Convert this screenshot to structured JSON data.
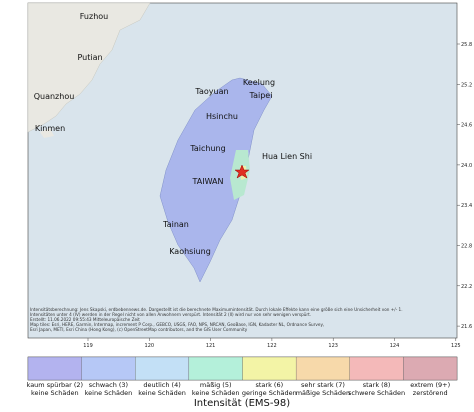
{
  "map": {
    "lat_ticks": [
      "25.8",
      "25.2",
      "24.6",
      "24.0",
      "23.4",
      "22.8",
      "22.2",
      "21.6"
    ],
    "lon_ticks": [
      "119",
      "120",
      "121",
      "122",
      "123",
      "124",
      "125"
    ],
    "places": [
      "Fuzhou",
      "Putian",
      "Quanzhou",
      "Kinmen",
      "Keelung",
      "Taoyuan",
      "Taipei",
      "Hsinchu",
      "Taichung",
      "Hua Lien Shi",
      "TAIWAN",
      "Tainan",
      "Kaohsiung"
    ],
    "attribution": [
      "Intensitätsberechnung: Jens Skapski, erdbebennews.de. Dargestellt ist die berechnete Maximumintensität. Durch lokale Effekte kann eine größe sich eine Unsicherheit von +/- 1.",
      "Intensitäten unter 4 (IV) werden in der Regel nicht von allen Anwohnern verspürt. Intensität 2 (II) wird nur von sehr wenigen verspürt.",
      "Erstellt: 11.06.2022 09:55:43 Mitteleuropäische Zeit",
      "Map tiles: Esri, HERE, Garmin, Intermap, increment P Corp., GEBCO, USGS, FAO, NPS, NRCAN, GeoBase, IGN, Kadaster NL, Ordnance Survey,",
      "Esri Japan, METI, Esri China (Hong Kong), (c) OpenStreetMap contributors, and the GIS User Community"
    ]
  },
  "legend": {
    "title": "Intensität (EMS-98)",
    "classes": [
      {
        "label": "kaum spürbar (2)",
        "sublabel": "keine Schäden",
        "color": "#b3b3ef"
      },
      {
        "label": "schwach (3)",
        "sublabel": "keine Schäden",
        "color": "#b6c8f6"
      },
      {
        "label": "deutlich (4)",
        "sublabel": "keine Schäden",
        "color": "#c3e0f6"
      },
      {
        "label": "mäßig (5)",
        "sublabel": "keine Schäden",
        "color": "#b4f0da"
      },
      {
        "label": "stark (6)",
        "sublabel": "geringe Schäden",
        "color": "#f3f4a6"
      },
      {
        "label": "sehr stark (7)",
        "sublabel": "mäßige Schäden",
        "color": "#f7d9aa"
      },
      {
        "label": "stark (8)",
        "sublabel": "schwere Schäden",
        "color": "#f4b9b9"
      },
      {
        "label": "extrem (9+)",
        "sublabel": "zerstörend",
        "color": "#dcaab2"
      }
    ]
  }
}
